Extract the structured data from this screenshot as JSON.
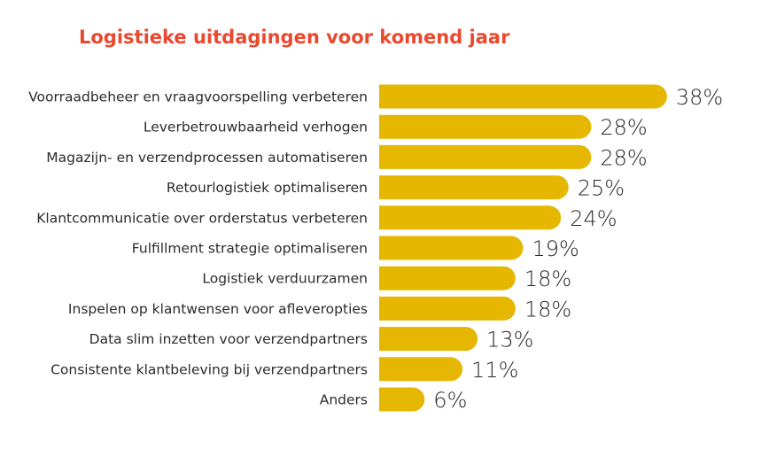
{
  "chart_data": {
    "type": "bar",
    "orientation": "horizontal",
    "title": "Logistieke uitdagingen voor komend jaar",
    "categories": [
      "Voorraadbeheer en vraagvoorspelling verbeteren",
      "Leverbetrouwbaarheid verhogen",
      "Magazijn- en verzendprocessen automatiseren",
      "Retourlogistiek optimaliseren",
      "Klantcommunicatie over orderstatus verbeteren",
      "Fulfillment strategie optimaliseren",
      "Logistiek verduurzamen",
      "Inspelen op klantwensen voor afleveropties",
      "Data slim inzetten voor verzendpartners",
      "Consistente klantbeleving bij verzendpartners",
      "Anders"
    ],
    "values": [
      38,
      28,
      28,
      25,
      24,
      19,
      18,
      18,
      13,
      11,
      6
    ],
    "value_labels": [
      "38%",
      "28%",
      "28%",
      "25%",
      "24%",
      "19%",
      "18%",
      "18%",
      "13%",
      "11%",
      "6%"
    ],
    "xlabel": "",
    "ylabel": "",
    "grid": false,
    "legend": "none",
    "colors": {
      "bar": "#e5b701",
      "title": "#e8492f",
      "text": "#2b2b2b"
    }
  }
}
